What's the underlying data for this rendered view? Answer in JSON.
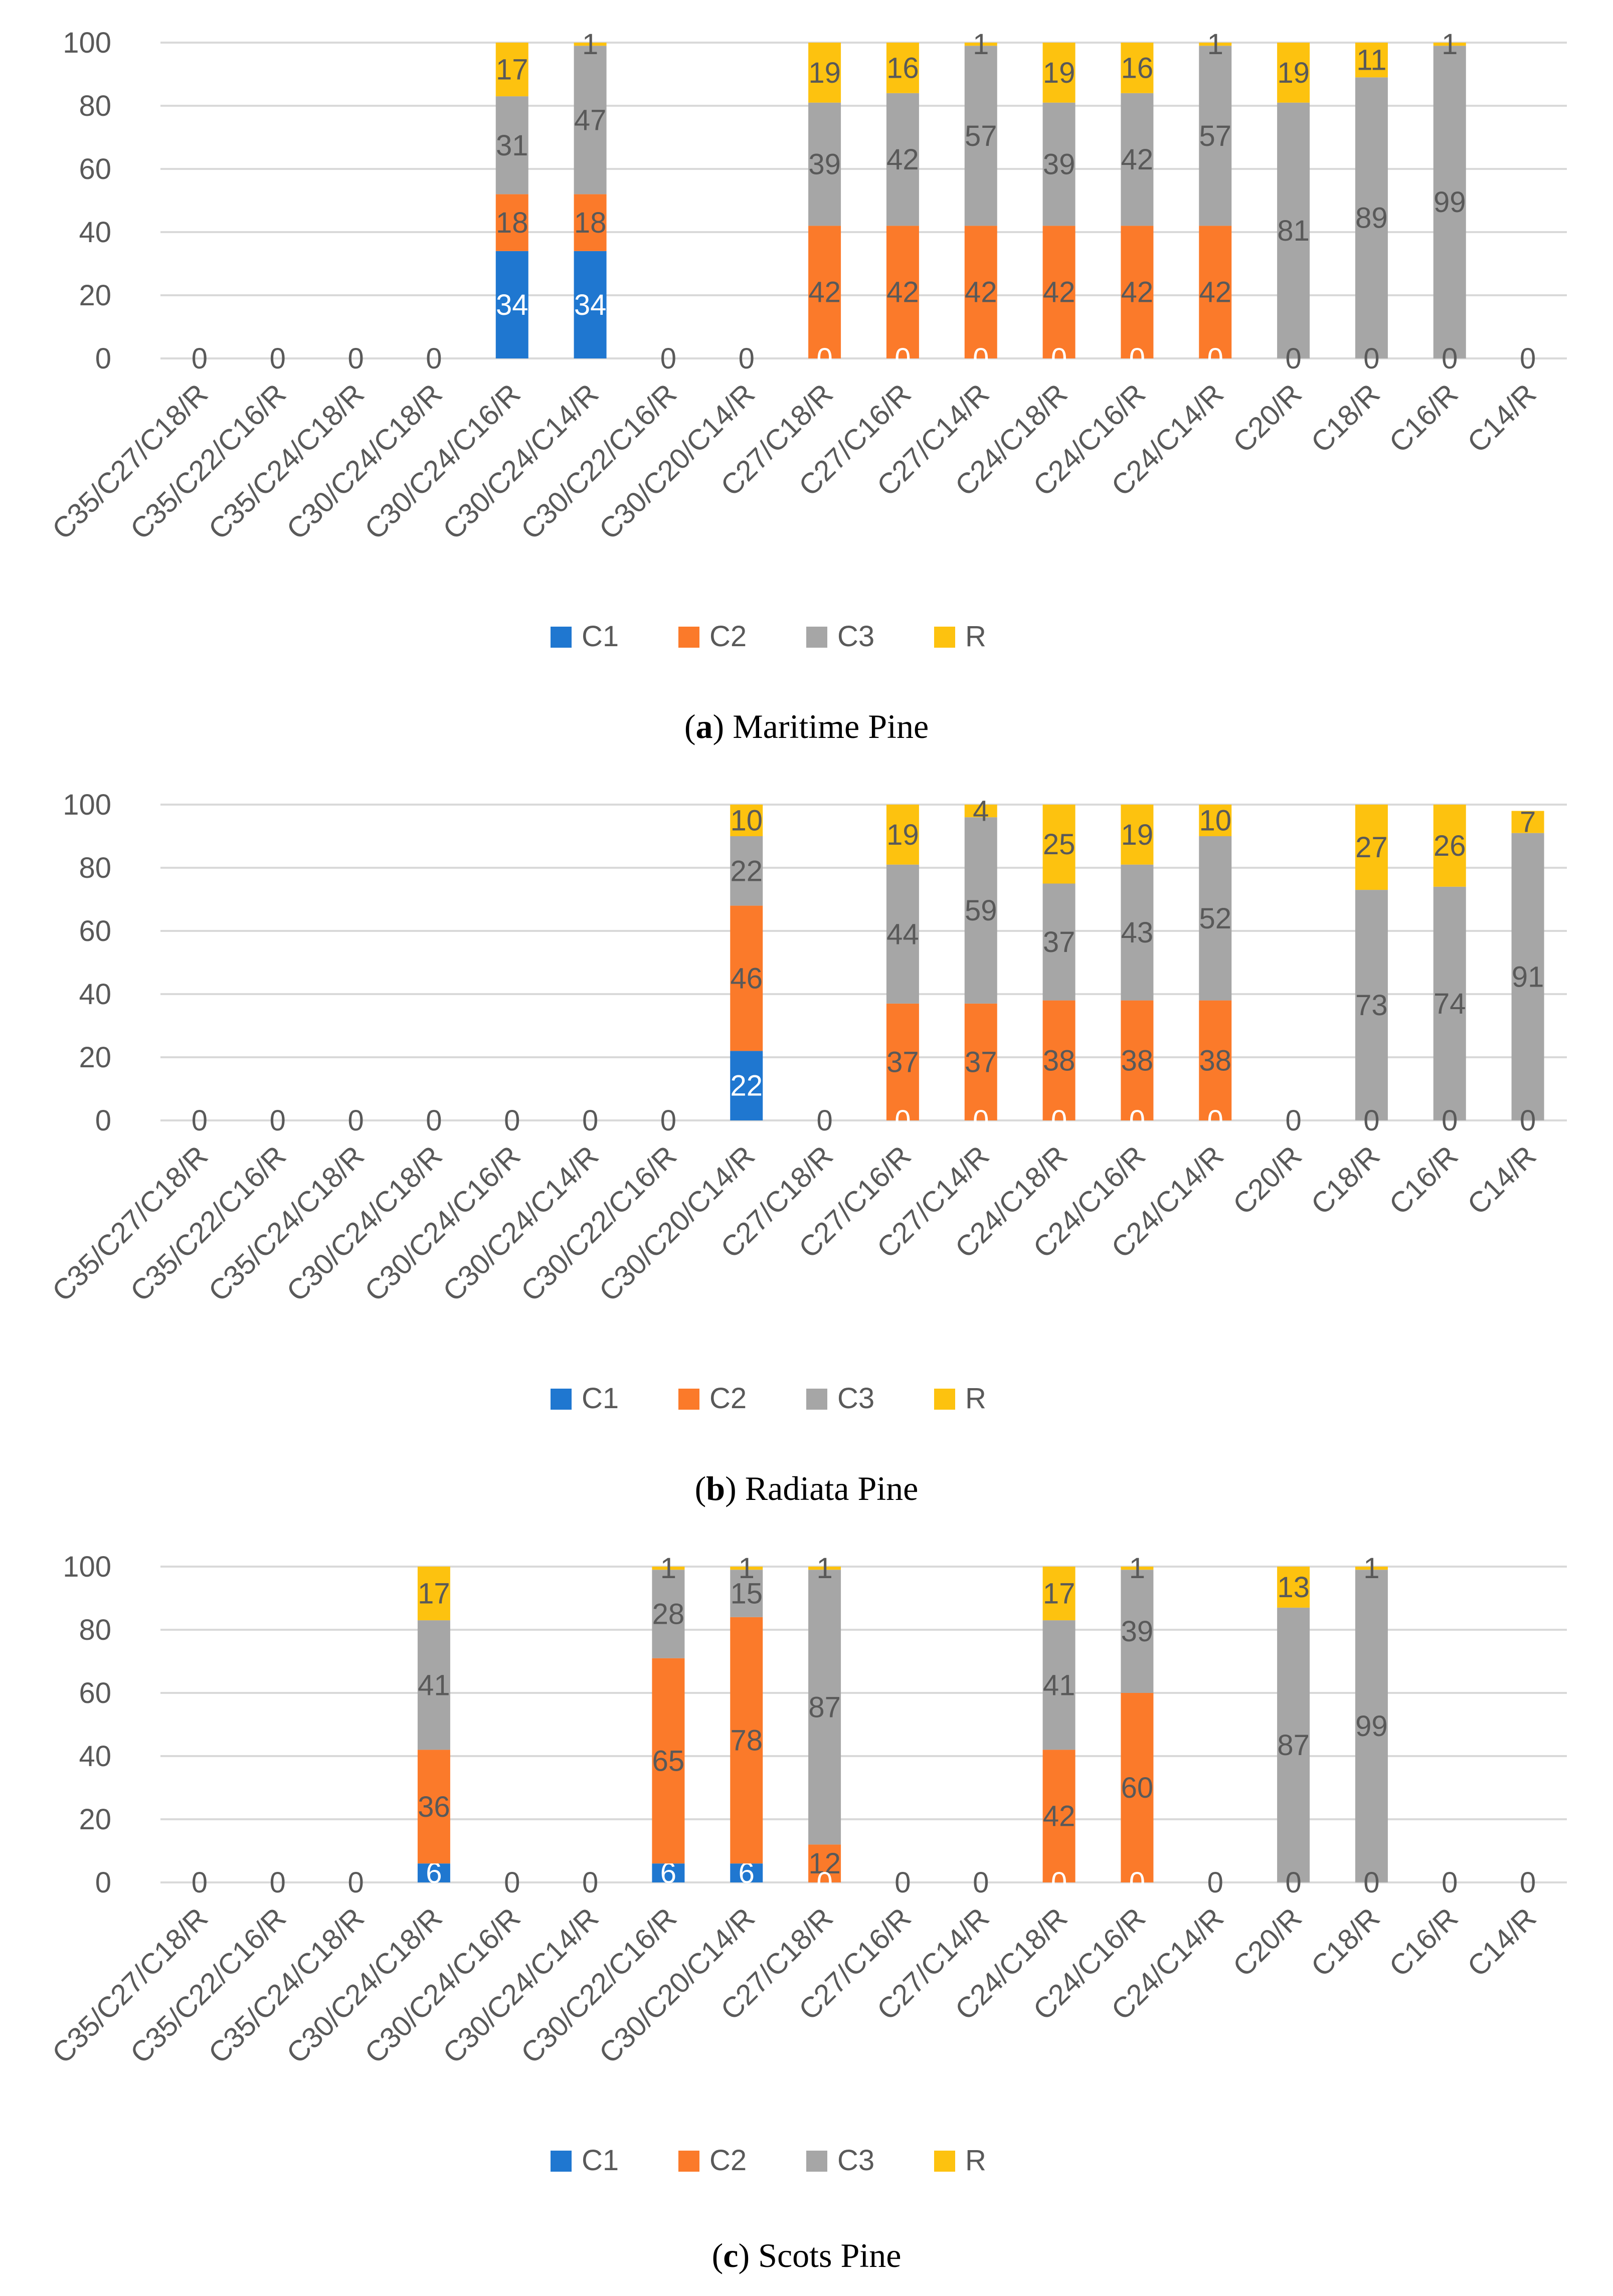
{
  "colors": {
    "C1": "#1f77d0",
    "C2": "#fb7a2a",
    "C3": "#a6a6a6",
    "R": "#fdc20f",
    "grid": "#d9d9d9",
    "axis_text": "#595959",
    "label_dark": "#595959",
    "label_light": "#ffffff"
  },
  "chart_data": [
    {
      "type": "bar",
      "stacked": true,
      "caption_letter": "a",
      "caption_text": "Maritime Pine",
      "ylim": [
        0,
        100
      ],
      "yticks": [
        "0",
        "20",
        "40",
        "60",
        "80",
        "100"
      ],
      "legend": [
        "C1",
        "C2",
        "C3",
        "R"
      ],
      "categories": [
        "C35/C27/C18/R",
        "C35/C22/C16/R",
        "C35/C24/C18/R",
        "C30/C24/C18/R",
        "C30/C24/C16/R",
        "C30/C24/C14/R",
        "C30/C22/C16/R",
        "C30/C20/C14/R",
        "C27/C18/R",
        "C27/C16/R",
        "C27/C14/R",
        "C24/C18/R",
        "C24/C16/R",
        "C24/C14/R",
        "C20/R",
        "C18/R",
        "C16/R",
        "C14/R"
      ],
      "series": [
        {
          "name": "C1",
          "values": [
            0,
            0,
            0,
            0,
            34,
            34,
            0,
            0,
            0,
            0,
            0,
            0,
            0,
            0,
            0,
            0,
            0,
            0
          ]
        },
        {
          "name": "C2",
          "values": [
            0,
            0,
            0,
            0,
            18,
            18,
            0,
            0,
            42,
            42,
            42,
            42,
            42,
            42,
            0,
            0,
            0,
            0
          ]
        },
        {
          "name": "C3",
          "values": [
            0,
            0,
            0,
            0,
            31,
            47,
            0,
            0,
            39,
            42,
            57,
            39,
            42,
            57,
            81,
            89,
            99,
            0
          ]
        },
        {
          "name": "R",
          "values": [
            0,
            0,
            0,
            0,
            17,
            1,
            0,
            0,
            19,
            16,
            1,
            19,
            16,
            1,
            19,
            11,
            1,
            0
          ]
        }
      ]
    },
    {
      "type": "bar",
      "stacked": true,
      "caption_letter": "b",
      "caption_text": "Radiata Pine",
      "ylim": [
        0,
        100
      ],
      "yticks": [
        "0",
        "20",
        "40",
        "60",
        "80",
        "100"
      ],
      "legend": [
        "C1",
        "C2",
        "C3",
        "R"
      ],
      "categories": [
        "C35/C27/C18/R",
        "C35/C22/C16/R",
        "C35/C24/C18/R",
        "C30/C24/C18/R",
        "C30/C24/C16/R",
        "C30/C24/C14/R",
        "C30/C22/C16/R",
        "C30/C20/C14/R",
        "C27/C18/R",
        "C27/C16/R",
        "C27/C14/R",
        "C24/C18/R",
        "C24/C16/R",
        "C24/C14/R",
        "C20/R",
        "C18/R",
        "C16/R",
        "C14/R"
      ],
      "series": [
        {
          "name": "C1",
          "values": [
            0,
            0,
            0,
            0,
            0,
            0,
            0,
            22,
            0,
            0,
            0,
            0,
            0,
            0,
            0,
            0,
            0,
            0
          ]
        },
        {
          "name": "C2",
          "values": [
            0,
            0,
            0,
            0,
            0,
            0,
            0,
            46,
            0,
            37,
            37,
            38,
            38,
            38,
            0,
            0,
            0,
            0
          ]
        },
        {
          "name": "C3",
          "values": [
            0,
            0,
            0,
            0,
            0,
            0,
            0,
            22,
            0,
            44,
            59,
            37,
            43,
            52,
            0,
            73,
            74,
            91
          ]
        },
        {
          "name": "R",
          "values": [
            0,
            0,
            0,
            0,
            0,
            0,
            0,
            10,
            0,
            19,
            4,
            25,
            19,
            10,
            0,
            27,
            26,
            7
          ]
        }
      ]
    },
    {
      "type": "bar",
      "stacked": true,
      "caption_letter": "c",
      "caption_text": "Scots Pine",
      "ylim": [
        0,
        100
      ],
      "yticks": [
        "0",
        "20",
        "40",
        "60",
        "80",
        "100"
      ],
      "legend": [
        "C1",
        "C2",
        "C3",
        "R"
      ],
      "categories": [
        "C35/C27/C18/R",
        "C35/C22/C16/R",
        "C35/C24/C18/R",
        "C30/C24/C18/R",
        "C30/C24/C16/R",
        "C30/C24/C14/R",
        "C30/C22/C16/R",
        "C30/C20/C14/R",
        "C27/C18/R",
        "C27/C16/R",
        "C27/C14/R",
        "C24/C18/R",
        "C24/C16/R",
        "C24/C14/R",
        "C20/R",
        "C18/R",
        "C16/R",
        "C14/R"
      ],
      "series": [
        {
          "name": "C1",
          "values": [
            0,
            0,
            0,
            6,
            0,
            0,
            6,
            6,
            0,
            0,
            0,
            0,
            0,
            0,
            0,
            0,
            0,
            0
          ]
        },
        {
          "name": "C2",
          "values": [
            0,
            0,
            0,
            36,
            0,
            0,
            65,
            78,
            12,
            0,
            0,
            42,
            60,
            0,
            0,
            0,
            0,
            0
          ]
        },
        {
          "name": "C3",
          "values": [
            0,
            0,
            0,
            41,
            0,
            0,
            28,
            15,
            87,
            0,
            0,
            41,
            39,
            0,
            87,
            99,
            0,
            0
          ]
        },
        {
          "name": "R",
          "values": [
            0,
            0,
            0,
            17,
            0,
            0,
            1,
            1,
            1,
            0,
            0,
            17,
            1,
            0,
            13,
            1,
            0,
            0
          ]
        }
      ]
    }
  ]
}
